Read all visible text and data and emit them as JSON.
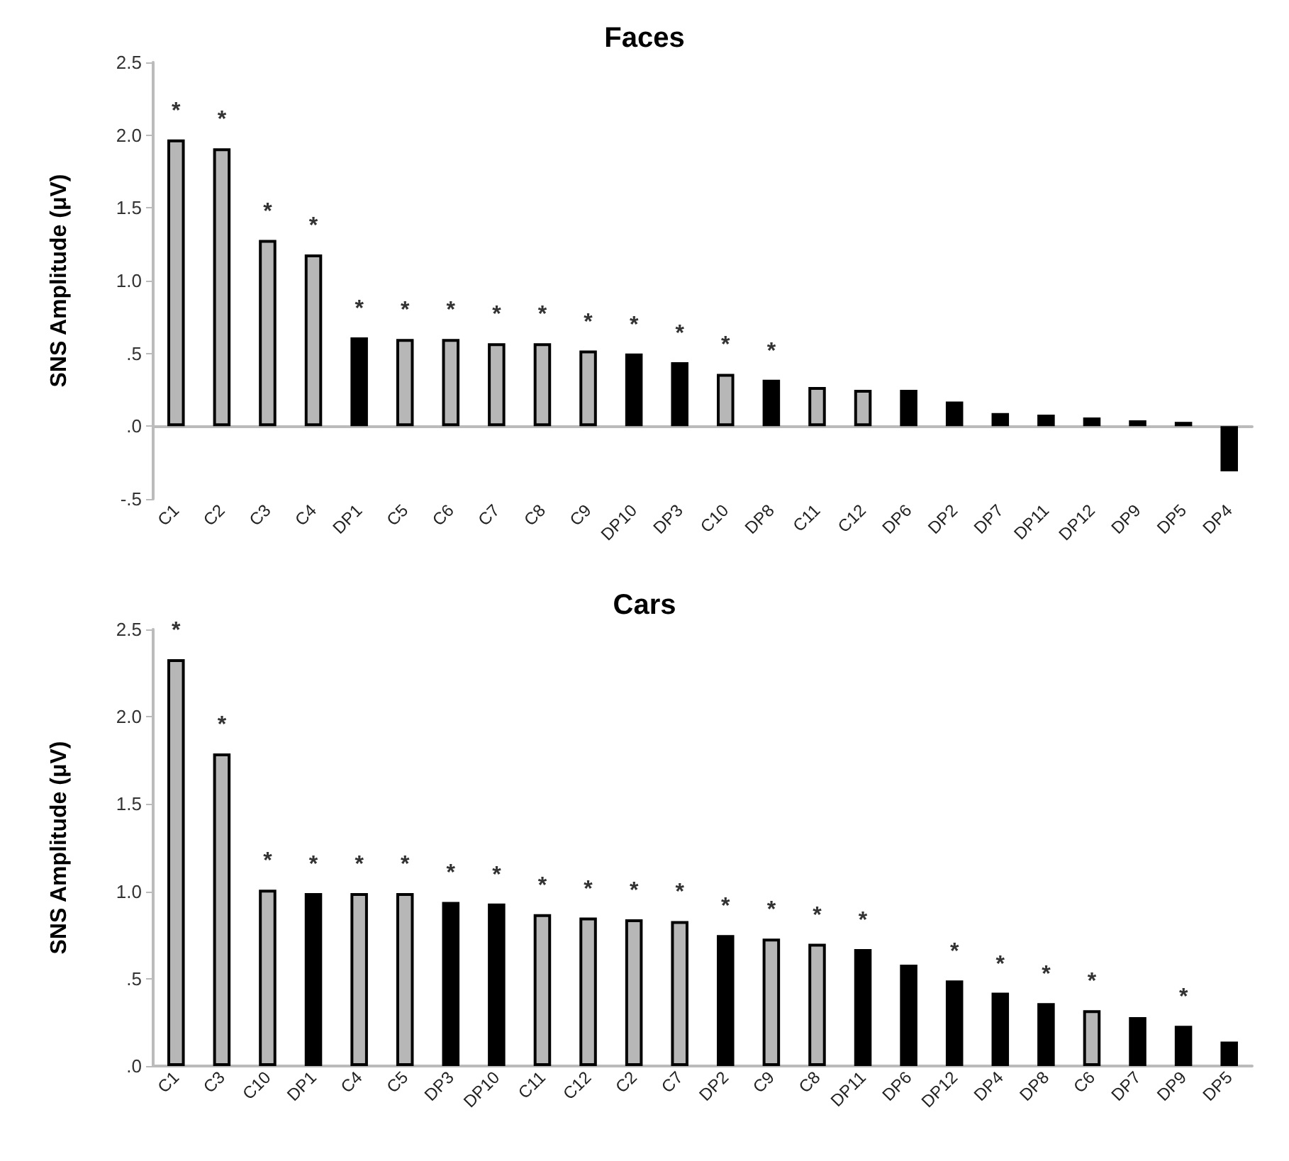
{
  "chart_data": [
    {
      "type": "bar",
      "title": "Faces",
      "ylabel": "SNS Amplitude (μV)",
      "categories": [
        "C1",
        "C2",
        "C3",
        "C4",
        "DP1",
        "C5",
        "C6",
        "C7",
        "C8",
        "C9",
        "DP10",
        "DP3",
        "C10",
        "DP8",
        "C11",
        "C12",
        "DP6",
        "DP2",
        "DP7",
        "DP11",
        "DP12",
        "DP9",
        "DP5",
        "DP4"
      ],
      "values": [
        1.97,
        1.91,
        1.28,
        1.18,
        0.61,
        0.6,
        0.6,
        0.57,
        0.57,
        0.52,
        0.5,
        0.44,
        0.36,
        0.32,
        0.27,
        0.25,
        0.25,
        0.17,
        0.09,
        0.08,
        0.06,
        0.04,
        0.03,
        -0.31
      ],
      "value_labels": [
        "*",
        "*",
        "*",
        "*",
        "*",
        "*",
        "*",
        "*",
        "*",
        "*",
        "*",
        "*",
        "*",
        "*",
        null,
        null,
        null,
        null,
        null,
        null,
        null,
        null,
        null,
        null
      ],
      "colors": [
        "#b7b7b7",
        "#b7b7b7",
        "#b7b7b7",
        "#b7b7b7",
        "#000000",
        "#b7b7b7",
        "#b7b7b7",
        "#b7b7b7",
        "#b7b7b7",
        "#b7b7b7",
        "#000000",
        "#000000",
        "#b7b7b7",
        "#000000",
        "#b7b7b7",
        "#b7b7b7",
        "#000000",
        "#000000",
        "#000000",
        "#000000",
        "#000000",
        "#000000",
        "#000000",
        "#000000"
      ],
      "ylim": [
        -0.5,
        2.5
      ],
      "yticks": [
        {
          "value": -0.5,
          "label": "-.5"
        },
        {
          "value": 0,
          "label": ".0"
        },
        {
          "value": 0.5,
          "label": ".5"
        },
        {
          "value": 1,
          "label": "1.0"
        },
        {
          "value": 1.5,
          "label": "1.5"
        },
        {
          "value": 2,
          "label": "2.0"
        },
        {
          "value": 2.5,
          "label": "2.5"
        }
      ]
    },
    {
      "type": "bar",
      "title": "Cars",
      "ylabel": "SNS Amplitude (μV)",
      "categories": [
        "C1",
        "C3",
        "C10",
        "DP1",
        "C4",
        "C5",
        "DP3",
        "DP10",
        "C11",
        "C12",
        "C2",
        "C7",
        "DP2",
        "C9",
        "C8",
        "DP11",
        "DP6",
        "DP12",
        "DP4",
        "DP8",
        "C6",
        "DP7",
        "DP9",
        "DP5"
      ],
      "values": [
        2.33,
        1.79,
        1.01,
        0.99,
        0.99,
        0.99,
        0.94,
        0.93,
        0.87,
        0.85,
        0.84,
        0.83,
        0.75,
        0.73,
        0.7,
        0.67,
        0.58,
        0.49,
        0.42,
        0.36,
        0.32,
        0.28,
        0.23,
        0.14
      ],
      "value_labels": [
        "*",
        "*",
        "*",
        "*",
        "*",
        "*",
        "*",
        "*",
        "*",
        "*",
        "*",
        "*",
        "*",
        "*",
        "*",
        "*",
        null,
        "*",
        "*",
        "*",
        "*",
        null,
        "*",
        null
      ],
      "colors": [
        "#b7b7b7",
        "#b7b7b7",
        "#b7b7b7",
        "#000000",
        "#b7b7b7",
        "#b7b7b7",
        "#000000",
        "#000000",
        "#b7b7b7",
        "#b7b7b7",
        "#b7b7b7",
        "#b7b7b7",
        "#000000",
        "#b7b7b7",
        "#b7b7b7",
        "#000000",
        "#000000",
        "#000000",
        "#000000",
        "#000000",
        "#b7b7b7",
        "#000000",
        "#000000",
        "#000000"
      ],
      "ylim": [
        0,
        2.5
      ],
      "yticks": [
        {
          "value": 0,
          "label": ".0"
        },
        {
          "value": 0.5,
          "label": ".5"
        },
        {
          "value": 1,
          "label": "1.0"
        },
        {
          "value": 1.5,
          "label": "1.5"
        },
        {
          "value": 2,
          "label": "2.0"
        },
        {
          "value": 2.5,
          "label": "2.5"
        }
      ]
    }
  ]
}
